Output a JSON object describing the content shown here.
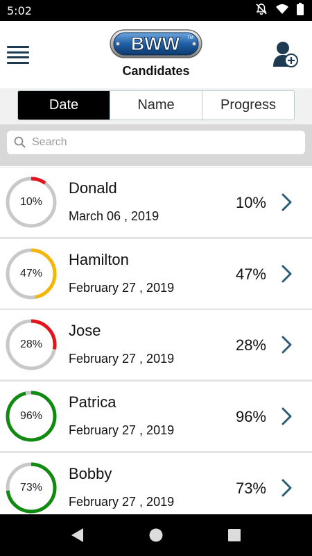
{
  "status_bar": {
    "time": "5:02"
  },
  "header": {
    "logo_text": "BWW",
    "logo_tm": "TM",
    "title": "Candidates"
  },
  "tabs": [
    {
      "label": "Date",
      "active": true
    },
    {
      "label": "Name",
      "active": false
    },
    {
      "label": "Progress",
      "active": false
    }
  ],
  "search": {
    "placeholder": "Search",
    "value": ""
  },
  "candidates": [
    {
      "name": "Donald",
      "date": "March 06 , 2019",
      "progress": 10,
      "progress_label": "10%",
      "color": "#e3141b"
    },
    {
      "name": "Hamilton",
      "date": "February 27 , 2019",
      "progress": 47,
      "progress_label": "47%",
      "color": "#f5b60b"
    },
    {
      "name": "Jose",
      "date": "February 27 , 2019",
      "progress": 28,
      "progress_label": "28%",
      "color": "#e3141b"
    },
    {
      "name": "Patrica",
      "date": "February 27 , 2019",
      "progress": 96,
      "progress_label": "96%",
      "color": "#118a11"
    },
    {
      "name": "Bobby",
      "date": "February 27 , 2019",
      "progress": 73,
      "progress_label": "73%",
      "color": "#118a11"
    }
  ],
  "colors": {
    "ring_track": "#c8c8c8",
    "chevron": "#2b5d78",
    "menu": "#1e3a52",
    "logo_blue": "#1f5fa6"
  },
  "icons": {
    "menu": "hamburger-icon",
    "add_user": "add-user-icon",
    "search": "search-icon",
    "chevron": "chevron-right-icon",
    "back": "back-triangle-icon",
    "home": "home-circle-icon",
    "recents": "recents-square-icon",
    "notifications_off": "bell-off-icon",
    "wifi": "wifi-icon",
    "battery": "battery-icon"
  }
}
